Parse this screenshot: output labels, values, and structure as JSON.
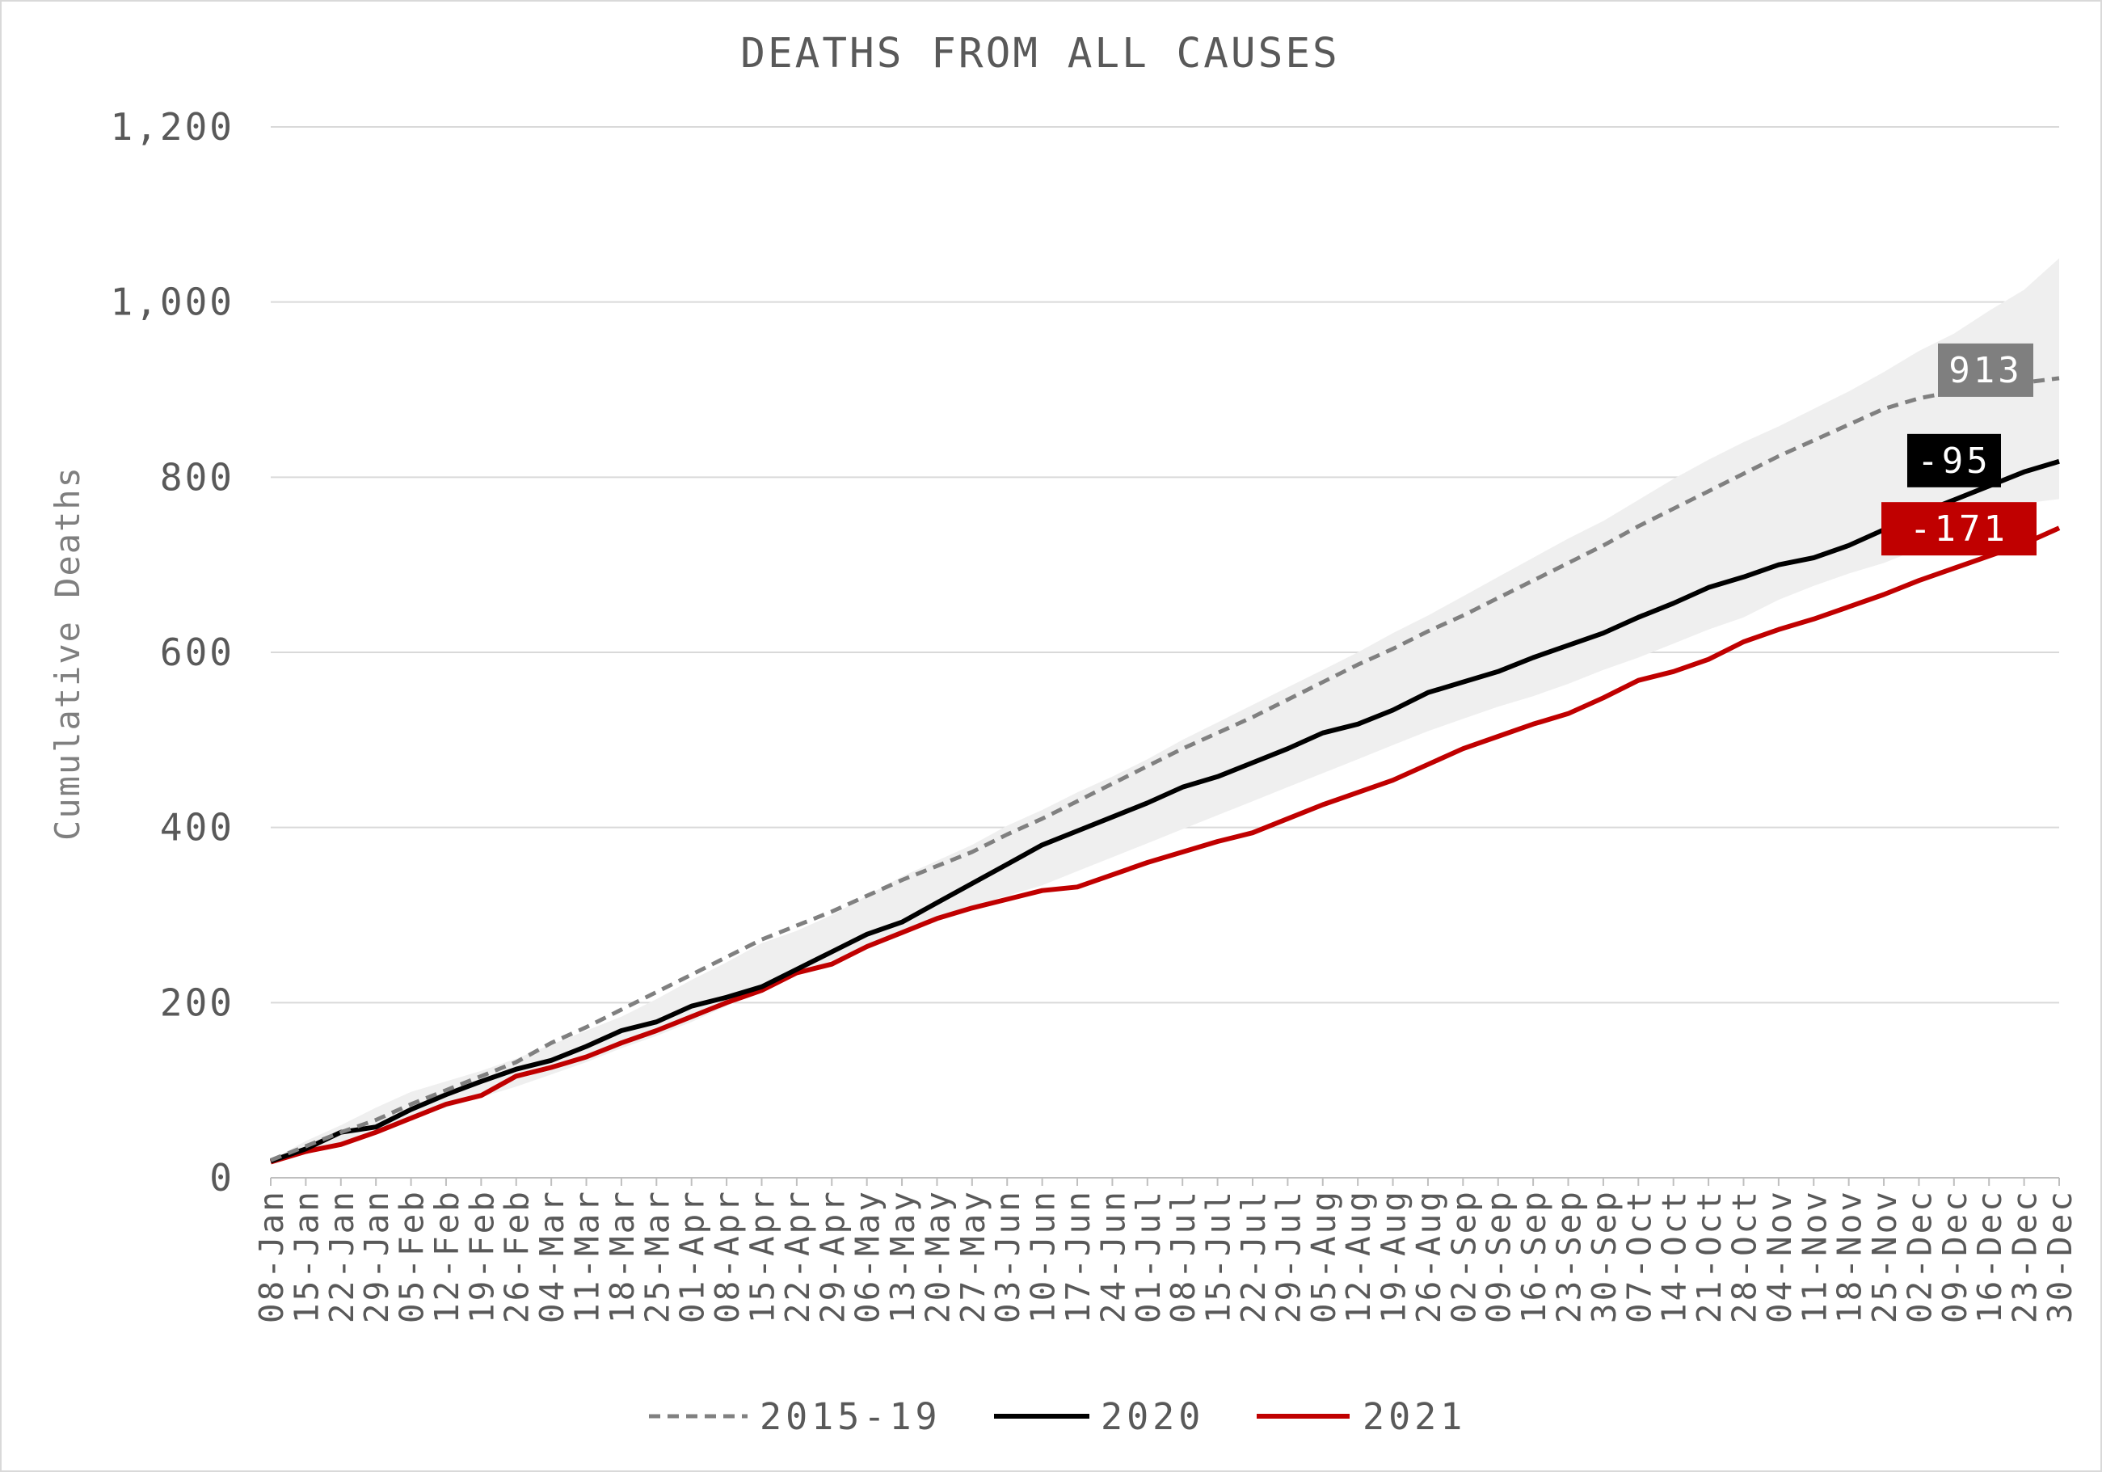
{
  "chart_data": {
    "type": "line",
    "title": "DEATHS FROM ALL CAUSES",
    "ylabel": "Cumulative Deaths",
    "xlabel": "",
    "ylim": [
      0,
      1200
    ],
    "yticks": [
      0,
      200,
      400,
      600,
      800,
      1000,
      1200
    ],
    "ytick_labels": [
      "0",
      "200",
      "400",
      "600",
      "800",
      "1,000",
      "1,200"
    ],
    "grid": true,
    "legend_position": "bottom",
    "categories": [
      "08-Jan",
      "15-Jan",
      "22-Jan",
      "29-Jan",
      "05-Feb",
      "12-Feb",
      "19-Feb",
      "26-Feb",
      "04-Mar",
      "11-Mar",
      "18-Mar",
      "25-Mar",
      "01-Apr",
      "08-Apr",
      "15-Apr",
      "22-Apr",
      "29-Apr",
      "06-May",
      "13-May",
      "20-May",
      "27-May",
      "03-Jun",
      "10-Jun",
      "17-Jun",
      "24-Jun",
      "01-Jul",
      "08-Jul",
      "15-Jul",
      "22-Jul",
      "29-Jul",
      "05-Aug",
      "12-Aug",
      "19-Aug",
      "26-Aug",
      "02-Sep",
      "09-Sep",
      "16-Sep",
      "23-Sep",
      "30-Sep",
      "07-Oct",
      "14-Oct",
      "21-Oct",
      "28-Oct",
      "04-Nov",
      "11-Nov",
      "18-Nov",
      "25-Nov",
      "02-Dec",
      "09-Dec",
      "16-Dec",
      "23-Dec",
      "30-Dec"
    ],
    "band": {
      "color": "#efefef",
      "upper": [
        20,
        42,
        60,
        80,
        98,
        110,
        122,
        136,
        152,
        168,
        184,
        204,
        226,
        246,
        268,
        282,
        300,
        322,
        344,
        362,
        380,
        402,
        420,
        440,
        458,
        478,
        500,
        520,
        540,
        560,
        580,
        600,
        622,
        642,
        664,
        686,
        708,
        730,
        750,
        774,
        798,
        820,
        840,
        858,
        878,
        898,
        920,
        944,
        964,
        990,
        1014,
        1050
      ],
      "lower": [
        17,
        28,
        40,
        55,
        68,
        80,
        92,
        104,
        118,
        132,
        148,
        162,
        178,
        196,
        214,
        232,
        248,
        264,
        278,
        294,
        310,
        322,
        334,
        350,
        366,
        382,
        398,
        414,
        430,
        446,
        462,
        478,
        494,
        510,
        524,
        538,
        550,
        564,
        580,
        594,
        610,
        626,
        640,
        660,
        676,
        690,
        702,
        718,
        736,
        754,
        770,
        775
      ]
    },
    "series": [
      {
        "name": "2015-19",
        "color": "#808080",
        "dash": true,
        "end_label": "913",
        "end_label_color": "#7f7f7f",
        "values": [
          20,
          36,
          52,
          66,
          84,
          100,
          116,
          132,
          154,
          172,
          192,
          212,
          232,
          252,
          272,
          288,
          304,
          322,
          340,
          356,
          372,
          392,
          410,
          430,
          450,
          470,
          490,
          508,
          526,
          546,
          566,
          586,
          604,
          624,
          642,
          662,
          682,
          702,
          722,
          744,
          764,
          784,
          804,
          824,
          842,
          860,
          878,
          890,
          898,
          904,
          908,
          913
        ]
      },
      {
        "name": "2020",
        "color": "#000000",
        "dash": false,
        "end_label": "-95",
        "end_label_color": "#000000",
        "values": [
          19,
          33,
          52,
          58,
          78,
          95,
          110,
          124,
          134,
          150,
          168,
          178,
          196,
          206,
          218,
          238,
          258,
          278,
          292,
          314,
          336,
          358,
          380,
          396,
          412,
          428,
          446,
          458,
          474,
          490,
          508,
          518,
          534,
          554,
          566,
          578,
          594,
          608,
          622,
          640,
          656,
          674,
          686,
          700,
          708,
          722,
          740,
          758,
          774,
          790,
          806,
          818
        ]
      },
      {
        "name": "2021",
        "color": "#c00000",
        "dash": false,
        "end_label": "-171",
        "end_label_color": "#c00000",
        "values": [
          18,
          30,
          38,
          52,
          68,
          84,
          94,
          116,
          126,
          138,
          154,
          168,
          184,
          200,
          214,
          234,
          244,
          264,
          280,
          296,
          308,
          318,
          328,
          332,
          346,
          360,
          372,
          384,
          394,
          410,
          426,
          440,
          454,
          472,
          490,
          504,
          518,
          530,
          548,
          568,
          578,
          592,
          612,
          626,
          638,
          652,
          666,
          682,
          696,
          710,
          724,
          742
        ]
      }
    ]
  }
}
